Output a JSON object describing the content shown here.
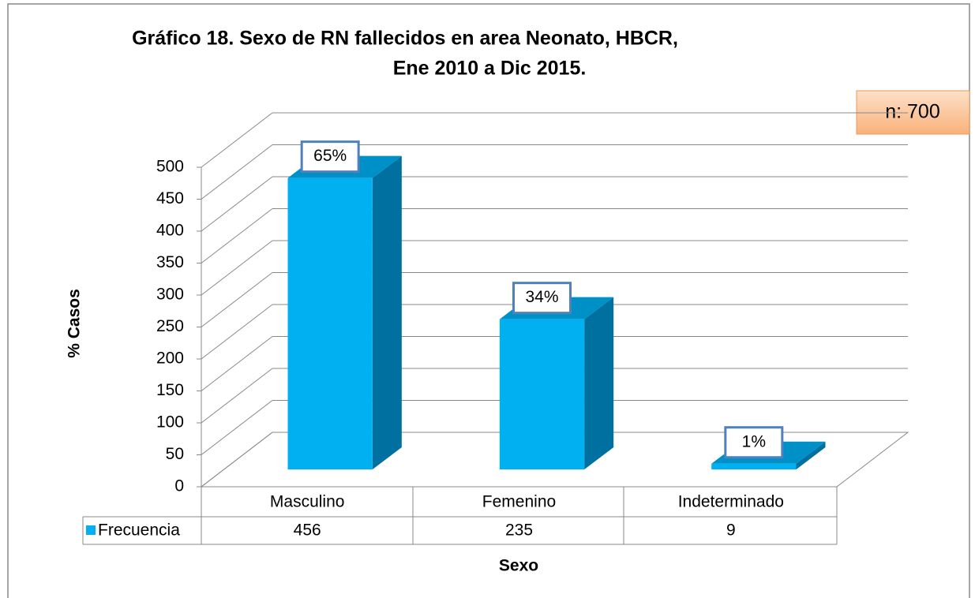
{
  "chart_data": {
    "type": "bar3d",
    "title_lines": [
      "Gráfico 18. Sexo de RN fallecidos en area Neonato, HBCR,",
      "Ene 2010 a Dic 2015."
    ],
    "annotation": "n: 700",
    "y_label": "% Casos",
    "x_label": "Sexo",
    "categories": [
      "Masculino",
      "Femenino",
      "Indeterminado"
    ],
    "series": [
      {
        "name": "Frecuencia",
        "color": "#00b0f0",
        "values": [
          456,
          235,
          9
        ]
      }
    ],
    "percentages": [
      {
        "value": 65,
        "label": "65%"
      },
      {
        "value": 34,
        "label": "34%"
      },
      {
        "value": 1,
        "label": "1%"
      }
    ],
    "ylim": [
      0,
      500
    ],
    "yticks": [
      0,
      50,
      100,
      150,
      200,
      250,
      300,
      350,
      400,
      450,
      500
    ],
    "grid": true
  }
}
